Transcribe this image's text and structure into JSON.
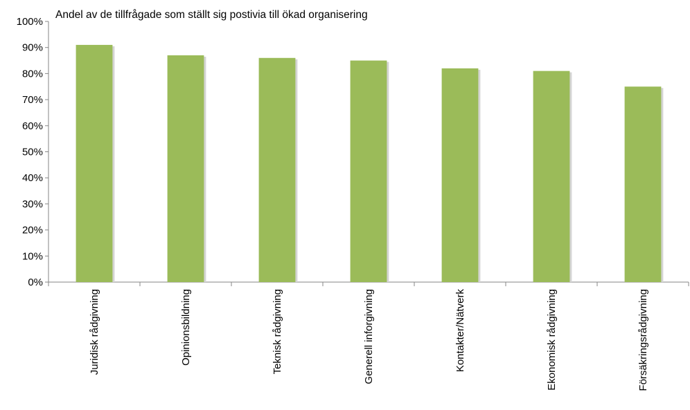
{
  "chart_data": {
    "type": "bar",
    "title": "Andel av de tillfrågade som ställt sig postivia till ökad organisering",
    "xlabel": "",
    "ylabel": "",
    "categories": [
      "Juridisk rådgivning",
      "Opinionsbildning",
      "Teknisk rådgivning",
      "Generell inforgivning",
      "Kontakter/Nätverk",
      "Ekonomisk rådgivning",
      "Försäkringsrådgivning"
    ],
    "values": [
      91,
      87,
      86,
      85,
      82,
      81,
      75
    ],
    "ylim": [
      0,
      100
    ],
    "y_ticks": [
      0,
      10,
      20,
      30,
      40,
      50,
      60,
      70,
      80,
      90,
      100
    ],
    "y_tick_labels": [
      "0%",
      "10%",
      "20%",
      "30%",
      "40%",
      "50%",
      "60%",
      "70%",
      "80%",
      "90%",
      "100%"
    ],
    "grid": false,
    "bar_color": "#9BBB59",
    "bar_shadow_color": "#D4D4D4",
    "axis_color": "#868686"
  }
}
